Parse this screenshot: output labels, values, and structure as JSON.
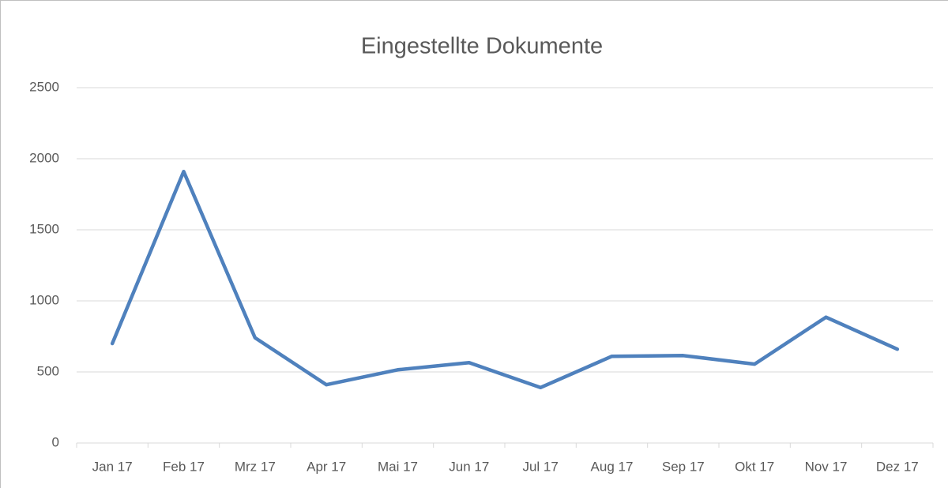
{
  "chart_data": {
    "type": "line",
    "title": "Eingestellte Dokumente",
    "categories": [
      "Jan 17",
      "Feb 17",
      "Mrz 17",
      "Apr 17",
      "Mai 17",
      "Jun 17",
      "Jul 17",
      "Aug 17",
      "Sep 17",
      "Okt 17",
      "Nov 17",
      "Dez 17"
    ],
    "series": [
      {
        "name": "Eingestellte Dokumente",
        "color": "#4f81bd",
        "values": [
          700,
          1910,
          740,
          410,
          515,
          565,
          390,
          610,
          615,
          555,
          885,
          660
        ]
      }
    ],
    "ylim": [
      0,
      2500
    ],
    "yticks": [
      0,
      500,
      1000,
      1500,
      2000,
      2500
    ],
    "grid": true
  }
}
